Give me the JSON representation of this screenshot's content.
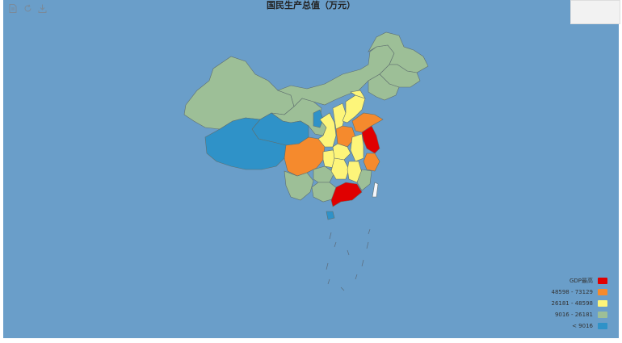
{
  "title": "国民生产总值（万元）",
  "toolbar": {
    "icons": [
      "data-view-icon",
      "restore-icon",
      "save-image-icon"
    ]
  },
  "legend": {
    "items": [
      {
        "label": "GDP最高",
        "color": "#e00000"
      },
      {
        "label": "48598 - 73129",
        "color": "#f58a2d"
      },
      {
        "label": "26181 - 48598",
        "color": "#fdf57a"
      },
      {
        "label": "9016 - 26181",
        "color": "#9dbf97"
      },
      {
        "label": "< 9016",
        "color": "#2f92c8"
      }
    ]
  },
  "colors": {
    "background": "#6a9ec9",
    "top": "#e00000",
    "high": "#f58a2d",
    "mid": "#fdf57a",
    "low": "#9dbf97",
    "lowest": "#2f92c8",
    "taiwan": "#f4f6fb"
  }
}
